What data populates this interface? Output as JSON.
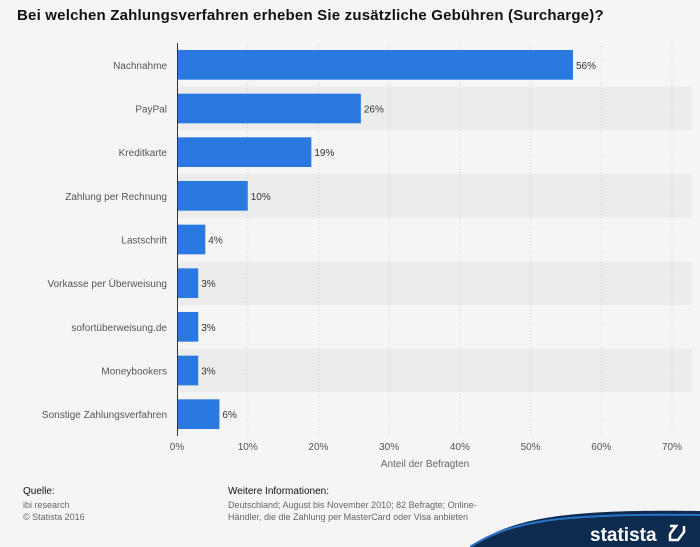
{
  "title": "Bei welchen Zahlungsverfahren erheben Sie zusätzliche Gebühren (Surcharge)?",
  "chart_data": {
    "type": "bar",
    "orientation": "horizontal",
    "categories": [
      "Nachnahme",
      "PayPal",
      "Kreditkarte",
      "Zahlung per Rechnung",
      "Lastschrift",
      "Vorkasse per Überweisung",
      "sofortüberweisung.de",
      "Moneybookers",
      "Sonstige Zahlungsverfahren"
    ],
    "values": [
      56,
      26,
      19,
      10,
      4,
      3,
      3,
      3,
      6
    ],
    "value_labels": [
      "56%",
      "26%",
      "19%",
      "10%",
      "4%",
      "3%",
      "3%",
      "3%",
      "6%"
    ],
    "xlim": [
      0,
      70
    ],
    "xticks": [
      0,
      10,
      20,
      30,
      40,
      50,
      60,
      70
    ],
    "xtick_labels": [
      "0%",
      "10%",
      "20%",
      "30%",
      "40%",
      "50%",
      "60%",
      "70%"
    ],
    "xlabel": "Anteil der Befragten",
    "ylabel": "",
    "bar_color": "#2979e0",
    "grid": true,
    "legend": "none"
  },
  "footer": {
    "source_heading": "Quelle:",
    "source_lines": [
      "ibi research",
      "© Statista 2016"
    ],
    "info_heading": "Weitere Informationen:",
    "info_text": "Deutschland; August bis November 2010; 82 Befragte; Online-Händler, die die Zahlung per MasterCard oder Visa anbieten"
  },
  "brand": {
    "logo_text": "statista",
    "logo_color": "#0d2a4f"
  }
}
